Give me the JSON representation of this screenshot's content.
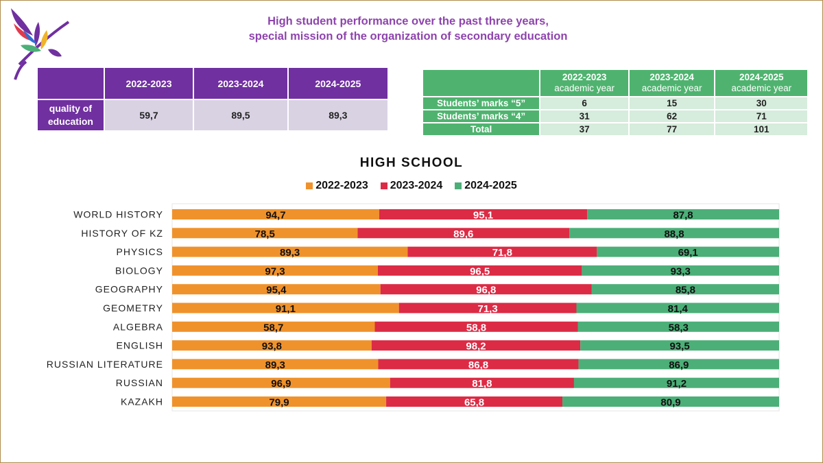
{
  "header": {
    "line1": "High student performance over the past three years,",
    "line2": "special mission of the organization of secondary education"
  },
  "quality_table": {
    "headers": [
      "",
      "2022-2023",
      "2023-2024",
      "2024-2025"
    ],
    "row_label": "quality of education",
    "values": [
      "59,7",
      "89,5",
      "89,3"
    ]
  },
  "marks_table": {
    "headers": [
      [
        "",
        ""
      ],
      [
        "2022-2023",
        "academic year"
      ],
      [
        "2023-2024",
        "academic year"
      ],
      [
        "2024-2025",
        "academic year"
      ]
    ],
    "rows": [
      {
        "label": "Students’ marks “5”",
        "values": [
          "6",
          "15",
          "30"
        ]
      },
      {
        "label": "Students’ marks “4”",
        "values": [
          "31",
          "62",
          "71"
        ]
      },
      {
        "label": "Total",
        "values": [
          "37",
          "77",
          "101"
        ]
      }
    ]
  },
  "colors": {
    "purple": "#7030a0",
    "green_header": "#4fb36f",
    "orange": "#f0922b",
    "red": "#dc2b45",
    "green": "#4caf78"
  },
  "chart_data": {
    "type": "bar",
    "stacked": true,
    "orientation": "horizontal",
    "title": "HIGH SCHOOL",
    "legend_position": "top",
    "categories": [
      "WORLD HISTORY",
      "HISTORY OF KZ",
      "PHYSICS",
      "BIOLOGY",
      "GEOGRAPHY",
      "GEOMETRY",
      "ALGEBRA",
      "ENGLISH",
      "RUSSIAN LITERATURE",
      "RUSSIAN",
      "KAZAKH"
    ],
    "series": [
      {
        "name": "2022-2023",
        "color": "#f0922b",
        "values": [
          94.7,
          78.5,
          89.3,
          97.3,
          95.4,
          91.1,
          58.7,
          93.8,
          89.3,
          96.9,
          79.9
        ],
        "labels": [
          "94,7",
          "78,5",
          "89,3",
          "97,3",
          "95,4",
          "91,1",
          "58,7",
          "93,8",
          "89,3",
          "96,9",
          "79,9"
        ]
      },
      {
        "name": "2023-2024",
        "color": "#dc2b45",
        "values": [
          95.1,
          89.6,
          71.8,
          96.5,
          96.8,
          71.3,
          58.8,
          98.2,
          86.8,
          81.8,
          65.8
        ],
        "labels": [
          "95,1",
          "89,6",
          "71,8",
          "96,5",
          "96,8",
          "71,3",
          "58,8",
          "98,2",
          "86,8",
          "81,8",
          "65,8"
        ]
      },
      {
        "name": "2024-2025",
        "color": "#4caf78",
        "values": [
          87.8,
          88.8,
          69.1,
          93.3,
          85.8,
          81.4,
          58.3,
          93.5,
          86.9,
          91.2,
          80.9
        ],
        "labels": [
          "87,8",
          "88,8",
          "69,1",
          "93,3",
          "85,8",
          "81,4",
          "58,3",
          "93,5",
          "86,9",
          "91,2",
          "80,9"
        ]
      }
    ]
  }
}
